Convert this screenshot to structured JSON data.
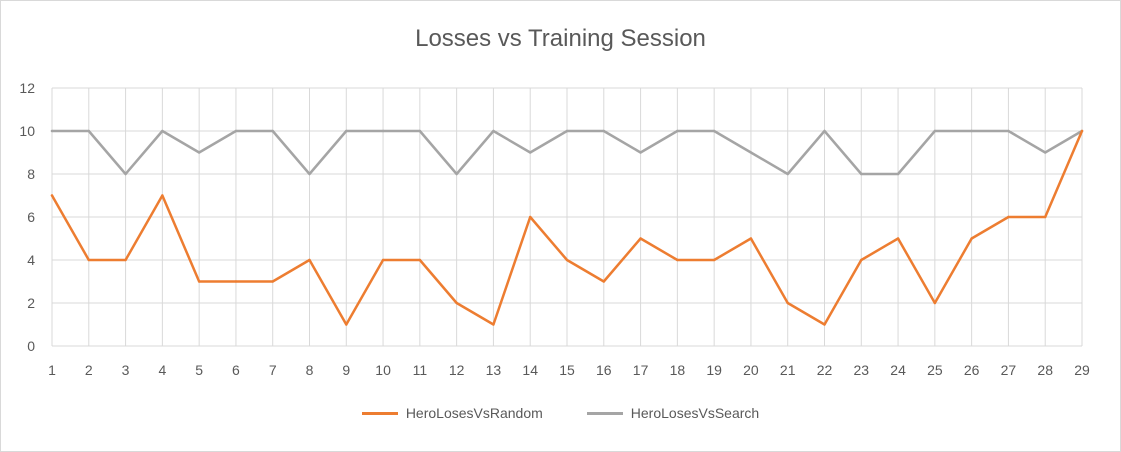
{
  "chart_data": {
    "type": "line",
    "title": "Losses vs Training Session",
    "x": [
      1,
      2,
      3,
      4,
      5,
      6,
      7,
      8,
      9,
      10,
      11,
      12,
      13,
      14,
      15,
      16,
      17,
      18,
      19,
      20,
      21,
      22,
      23,
      24,
      25,
      26,
      27,
      28,
      29
    ],
    "ylim": [
      0,
      12
    ],
    "yticks": [
      0,
      2,
      4,
      6,
      8,
      10,
      12
    ],
    "grid": true,
    "legend_position": "bottom",
    "series": [
      {
        "name": "HeroLosesVsRandom",
        "color": "#ED7D31",
        "values": [
          7,
          4,
          4,
          7,
          3,
          3,
          3,
          4,
          1,
          4,
          4,
          2,
          1,
          6,
          4,
          3,
          5,
          4,
          4,
          5,
          2,
          1,
          4,
          5,
          2,
          5,
          6,
          6,
          10
        ]
      },
      {
        "name": "HeroLosesVsSearch",
        "color": "#A5A5A5",
        "values": [
          10,
          10,
          8,
          10,
          9,
          10,
          10,
          8,
          10,
          10,
          10,
          8,
          10,
          9,
          10,
          10,
          9,
          10,
          10,
          9,
          8,
          10,
          8,
          8,
          10,
          10,
          10,
          9,
          10
        ]
      }
    ]
  }
}
